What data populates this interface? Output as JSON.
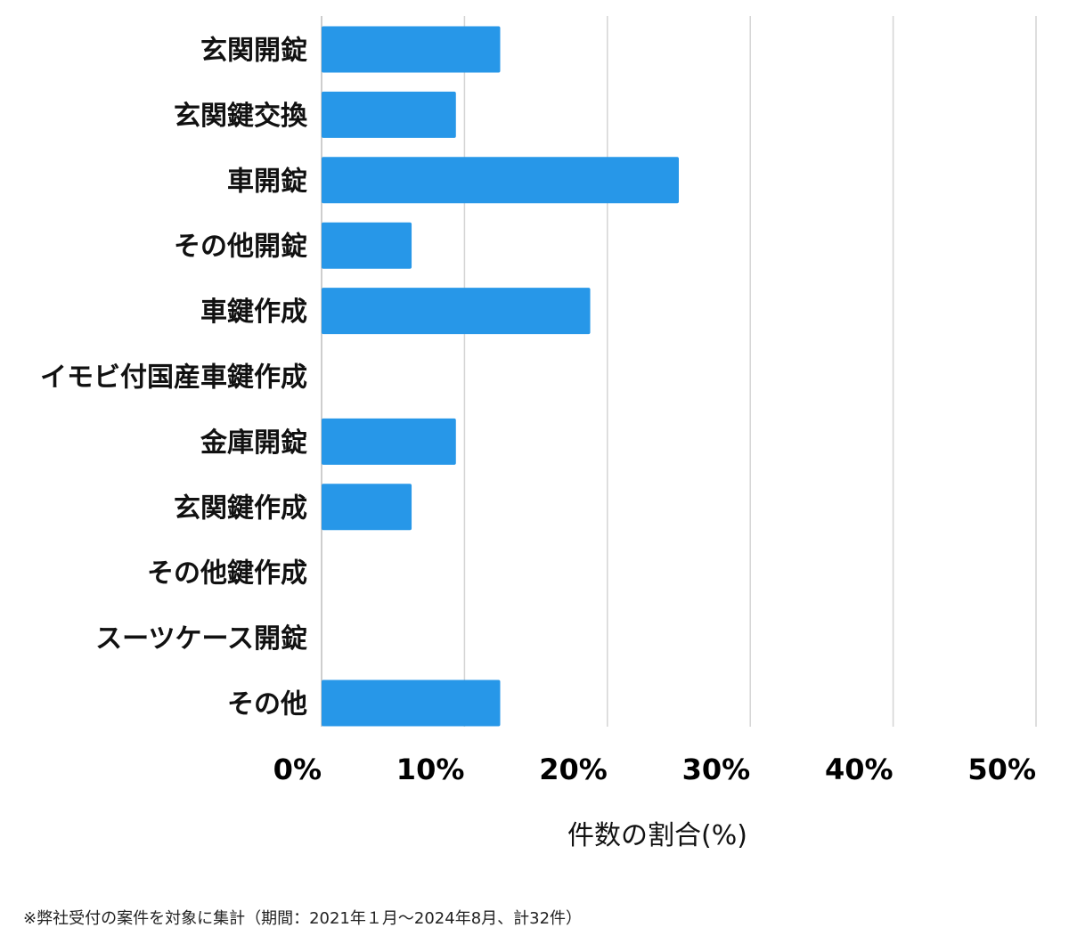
{
  "chart_data": {
    "type": "bar",
    "orientation": "horizontal",
    "categories": [
      "玄関開錠",
      "玄関鍵交換",
      "車開錠",
      "その他開錠",
      "車鍵作成",
      "イモビ付国産車鍵作成",
      "金庫開錠",
      "玄関鍵作成",
      "その他鍵作成",
      "スーツケース開錠",
      "その他"
    ],
    "values": [
      12.5,
      9.4,
      25.0,
      6.3,
      18.8,
      0,
      9.4,
      6.3,
      0,
      0,
      12.5
    ],
    "xlim": [
      0,
      50
    ],
    "x_ticks": [
      "0%",
      "10%",
      "20%",
      "30%",
      "40%",
      "50%"
    ],
    "xlabel": "件数の割合(%)",
    "grid": true,
    "bar_color": "#2797e8"
  },
  "footnote": "※弊社受付の案件を対象に集計（期間：2021年１月〜2024年8月、計32件）"
}
